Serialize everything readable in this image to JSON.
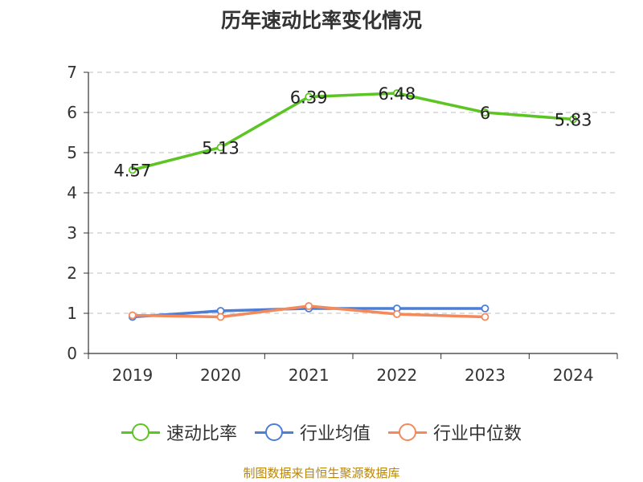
{
  "chart_data": {
    "type": "line",
    "title": "历年速动比率变化情况",
    "categories": [
      "2019",
      "2020",
      "2021",
      "2022",
      "2023",
      "2024"
    ],
    "ylim": [
      0,
      7
    ],
    "yticks": [
      "0",
      "1",
      "2",
      "3",
      "4",
      "5",
      "6",
      "7"
    ],
    "grid": true,
    "legend_position": "bottom",
    "series": [
      {
        "name": "速动比率",
        "color": "#5cc524",
        "values": [
          4.57,
          5.13,
          6.39,
          6.48,
          6,
          5.83
        ],
        "labels": [
          "4.57",
          "5.13",
          "6.39",
          "6.48",
          "6",
          "5.83"
        ]
      },
      {
        "name": "行业均值",
        "color": "#4c7ed8",
        "values": [
          0.91,
          1.06,
          1.12,
          1.12,
          1.12,
          null
        ]
      },
      {
        "name": "行业中位数",
        "color": "#f28a5b",
        "values": [
          0.95,
          0.91,
          1.18,
          0.98,
          0.91,
          null
        ]
      }
    ]
  },
  "source_note": "制图数据来自恒生聚源数据库"
}
